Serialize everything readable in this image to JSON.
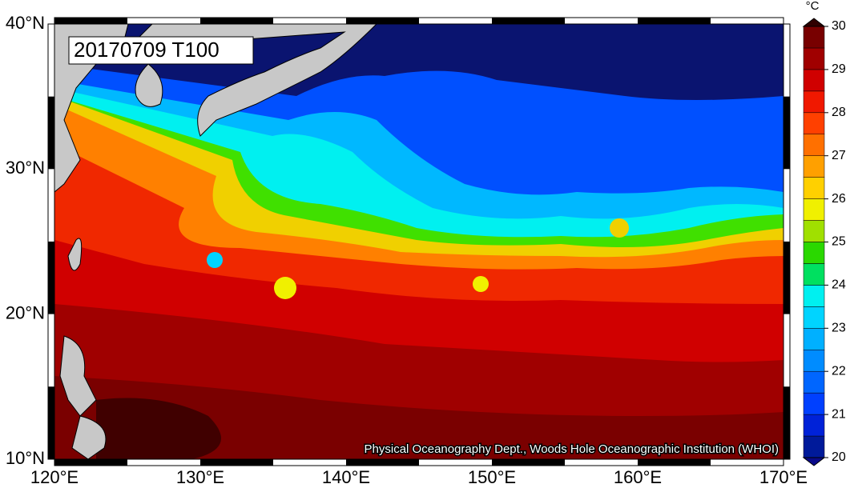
{
  "map": {
    "title": "20170709 T100",
    "credit": "Physical Oceanography Dept., Woods Hole Oceanographic Institution (WHOI)",
    "lat_range": [
      10,
      40
    ],
    "lon_range": [
      120,
      170
    ],
    "lat_ticks": [
      {
        "value": 40,
        "label": "40°N"
      },
      {
        "value": 30,
        "label": "30°N"
      },
      {
        "value": 20,
        "label": "20°N"
      },
      {
        "value": 10,
        "label": "10°N"
      }
    ],
    "lon_ticks": [
      {
        "value": 120,
        "label": "120°E"
      },
      {
        "value": 130,
        "label": "130°E"
      },
      {
        "value": 140,
        "label": "140°E"
      },
      {
        "value": 150,
        "label": "150°E"
      },
      {
        "value": 160,
        "label": "160°E"
      },
      {
        "value": 170,
        "label": "170°E"
      }
    ]
  },
  "colorbar": {
    "unit": "°C",
    "range": [
      20,
      30
    ],
    "ticks": [
      20,
      21,
      22,
      23,
      24,
      25,
      26,
      27,
      28,
      29,
      30
    ],
    "colors": [
      "#001a9a",
      "#0022d8",
      "#0040ff",
      "#0066ff",
      "#008cff",
      "#00b0ff",
      "#00d4ff",
      "#00f0f0",
      "#00e060",
      "#2ad800",
      "#a0e000",
      "#f0f000",
      "#ffd000",
      "#ffa000",
      "#ff7000",
      "#ff4000",
      "#f01800",
      "#d00000",
      "#a00000",
      "#780000"
    ],
    "below_color": "#0a0a8a",
    "above_color": "#300000"
  }
}
